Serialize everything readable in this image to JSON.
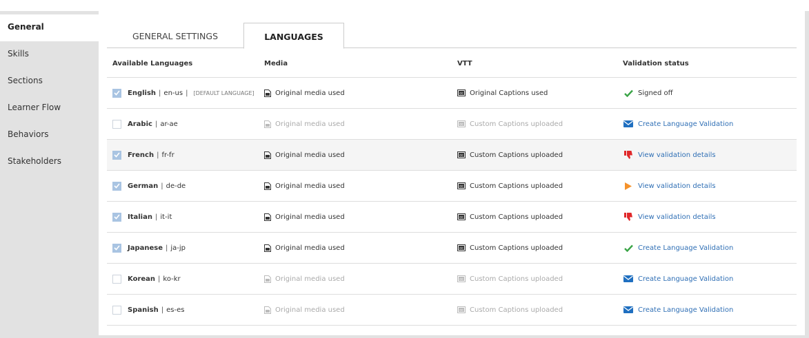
{
  "sidebar": {
    "items": [
      {
        "label": "General",
        "active": true
      },
      {
        "label": "Skills"
      },
      {
        "label": "Sections"
      },
      {
        "label": "Learner Flow"
      },
      {
        "label": "Behaviors"
      },
      {
        "label": "Stakeholders"
      }
    ]
  },
  "tabs": [
    {
      "label": "GENERAL SETTINGS"
    },
    {
      "label": "LANGUAGES",
      "active": true
    }
  ],
  "table": {
    "headers": [
      "Available Languages",
      "Media",
      "VTT",
      "Validation status"
    ],
    "rows": [
      {
        "name": "English",
        "code": "en-us",
        "tag": "[DEFAULT LANGUAGE]",
        "checked": true,
        "media": "Original media used",
        "vtt": "Original Captions used",
        "status": "Signed off",
        "status_icon": "check-icon",
        "status_link": false
      },
      {
        "name": "Arabic",
        "code": "ar-ae",
        "checked": false,
        "media": "Original media used",
        "vtt": "Custom Captions uploaded",
        "status": "Create Language Validation",
        "status_icon": "envelope-icon",
        "status_link": true
      },
      {
        "name": "French",
        "code": "fr-fr",
        "checked": true,
        "highlight": true,
        "media": "Original media used",
        "vtt": "Custom Captions uploaded",
        "status": "View validation details",
        "status_icon": "thumbs-down-icon",
        "status_link": true
      },
      {
        "name": "German",
        "code": "de-de",
        "checked": true,
        "media": "Original media used",
        "vtt": "Custom Captions uploaded",
        "status": "View validation details",
        "status_icon": "play-icon",
        "status_link": true
      },
      {
        "name": "Italian",
        "code": "it-it",
        "checked": true,
        "media": "Original media used",
        "vtt": "Custom Captions uploaded",
        "status": "View validation details",
        "status_icon": "thumbs-down-icon",
        "status_link": true
      },
      {
        "name": "Japanese",
        "code": "ja-jp",
        "checked": true,
        "media": "Original media used",
        "vtt": "Custom Captions uploaded",
        "status": "Create Language Validation",
        "status_icon": "check-icon",
        "status_link": true
      },
      {
        "name": "Korean",
        "code": "ko-kr",
        "checked": false,
        "media": "Original media used",
        "vtt": "Custom Captions uploaded",
        "status": "Create Language Validation",
        "status_icon": "envelope-icon",
        "status_link": true
      },
      {
        "name": "Spanish",
        "code": "es-es",
        "checked": false,
        "media": "Original media used",
        "vtt": "Custom Captions uploaded",
        "status": "Create Language Validation",
        "status_icon": "envelope-icon",
        "status_link": true
      }
    ]
  },
  "colors": {
    "link": "#2f6fb5",
    "check": "#3aa447",
    "envelope": "#1f6fc0",
    "thumbs_down": "#e0282a",
    "play": "#f5922b",
    "checkbox_checked": "#a9c4e2"
  }
}
